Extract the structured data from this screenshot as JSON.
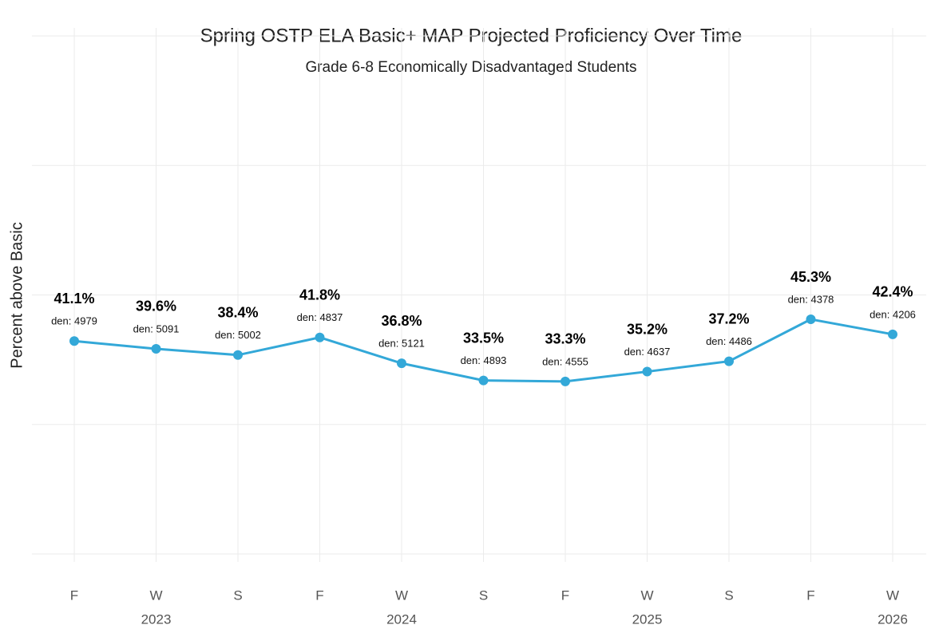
{
  "chart_data": {
    "type": "line",
    "title": "Spring OSTP ELA Basic+ MAP Projected Proficiency Over Time",
    "subtitle": "Grade 6-8 Economically Disadvantaged Students",
    "y_label": "Percent above Basic",
    "categories": [
      "F",
      "W",
      "S",
      "F",
      "W",
      "S",
      "F",
      "W",
      "S",
      "F",
      "W"
    ],
    "x_groups": [
      null,
      "2023",
      null,
      null,
      "2024",
      null,
      null,
      "2025",
      null,
      null,
      "2026"
    ],
    "series": [
      {
        "name": null,
        "color": "#33a8d8",
        "values": [
          41.1,
          39.6,
          38.4,
          41.8,
          36.8,
          33.5,
          33.3,
          35.2,
          37.2,
          45.3,
          42.4
        ],
        "value_labels": [
          "41.1%",
          "39.6%",
          "38.4%",
          "41.8%",
          "36.8%",
          "33.5%",
          "33.3%",
          "35.2%",
          "37.2%",
          "45.3%",
          "42.4%"
        ],
        "den_labels": [
          "den: 4979",
          "den: 5091",
          "den: 5002",
          "den: 4837",
          "den: 5121",
          "den: 4893",
          "den: 4555",
          "den: 4637",
          "den: 4486",
          "den: 4378",
          "den: 4206"
        ]
      }
    ],
    "ylim": [
      0,
      100
    ],
    "yticks": [
      0,
      25,
      50,
      75,
      100
    ],
    "grid": true
  }
}
